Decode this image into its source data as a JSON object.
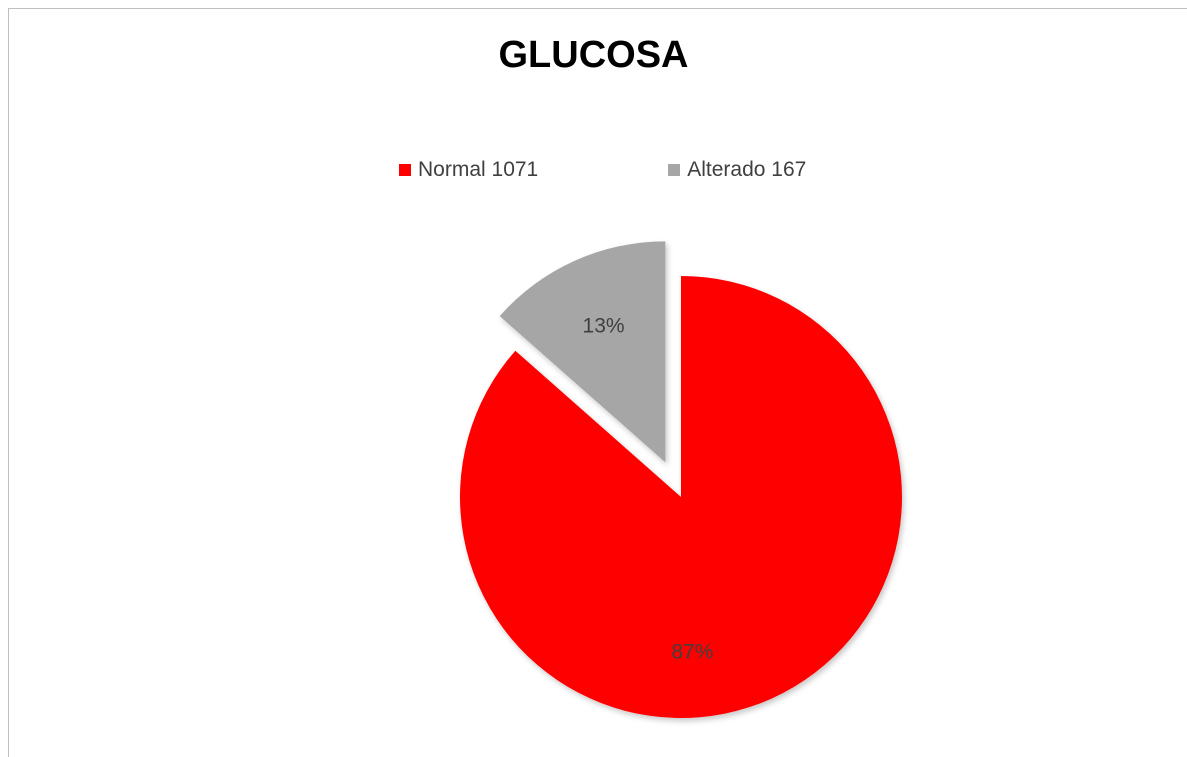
{
  "chart_data": {
    "type": "pie",
    "title": "GLUCOSA",
    "legend_position": "top",
    "slices": [
      {
        "name": "Normal 1071",
        "value": 1071,
        "percent_label": "87%",
        "color": "#ff0000",
        "exploded": false
      },
      {
        "name": "Alterado 167",
        "value": 167,
        "percent_label": "13%",
        "color": "#a6a6a6",
        "exploded": true
      }
    ]
  }
}
